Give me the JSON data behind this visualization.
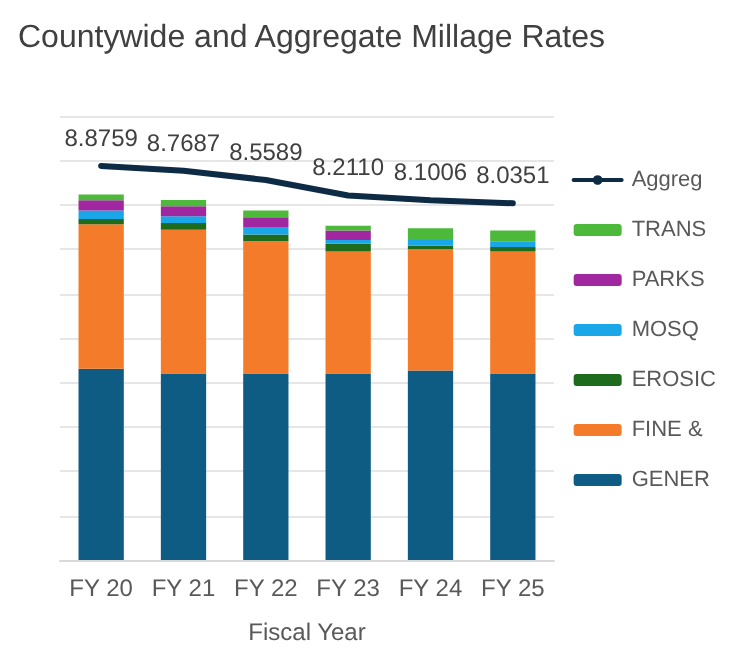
{
  "chart_data": {
    "type": "bar",
    "title": "Countywide and Aggregate Millage Rates",
    "xlabel": "Fiscal Year",
    "categories": [
      "FY 20",
      "FY 21",
      "FY 22",
      "FY 23",
      "FY 24",
      "FY 25"
    ],
    "stacked": true,
    "ylim": [
      0,
      10
    ],
    "yticks": [
      {
        "value": 0,
        "label": null
      },
      {
        "value": 1,
        "label": null
      },
      {
        "value": 2,
        "label": null
      },
      {
        "value": 3,
        "label": null
      },
      {
        "value": 4,
        "label": null
      },
      {
        "value": 5,
        "label": null
      },
      {
        "value": 6,
        "label": null
      },
      {
        "value": 7,
        "label": null
      },
      {
        "value": 8,
        "label": null
      },
      {
        "value": 9,
        "label": null
      },
      {
        "value": 10,
        "label": null
      }
    ],
    "tick_labels": "x",
    "grid": "y",
    "legend": "right",
    "series": [
      {
        "name": "GENER",
        "color": "#0e5c84",
        "values": [
          4.31,
          4.2,
          4.2,
          4.2,
          4.27,
          4.2
        ]
      },
      {
        "name": "FINE &",
        "color": "#f47b2a",
        "values": [
          3.25,
          3.24,
          2.98,
          2.75,
          2.73,
          2.75
        ]
      },
      {
        "name": "EROSIC",
        "color": "#1e6b1e",
        "values": [
          0.12,
          0.15,
          0.15,
          0.17,
          0.08,
          0.1
        ]
      },
      {
        "name": "MOSQ",
        "color": "#1aa7e8",
        "values": [
          0.19,
          0.15,
          0.17,
          0.09,
          0.13,
          0.13
        ]
      },
      {
        "name": "PARKS",
        "color": "#a0279f",
        "values": [
          0.23,
          0.23,
          0.22,
          0.21,
          null,
          null
        ]
      },
      {
        "name": "TRANS",
        "color": "#4db93a",
        "values": [
          0.13,
          0.14,
          0.15,
          0.11,
          0.26,
          0.24
        ]
      },
      {
        "name": "Aggreg",
        "type": "line",
        "color": "#0d2b45",
        "marker": "none",
        "values": [
          8.8759,
          8.7687,
          8.5589,
          8.211,
          8.1006,
          8.0351
        ],
        "value_labels": [
          "8.8759",
          "8.7687",
          "8.5589",
          "8.2110",
          "8.1006",
          "8.0351"
        ]
      }
    ]
  }
}
